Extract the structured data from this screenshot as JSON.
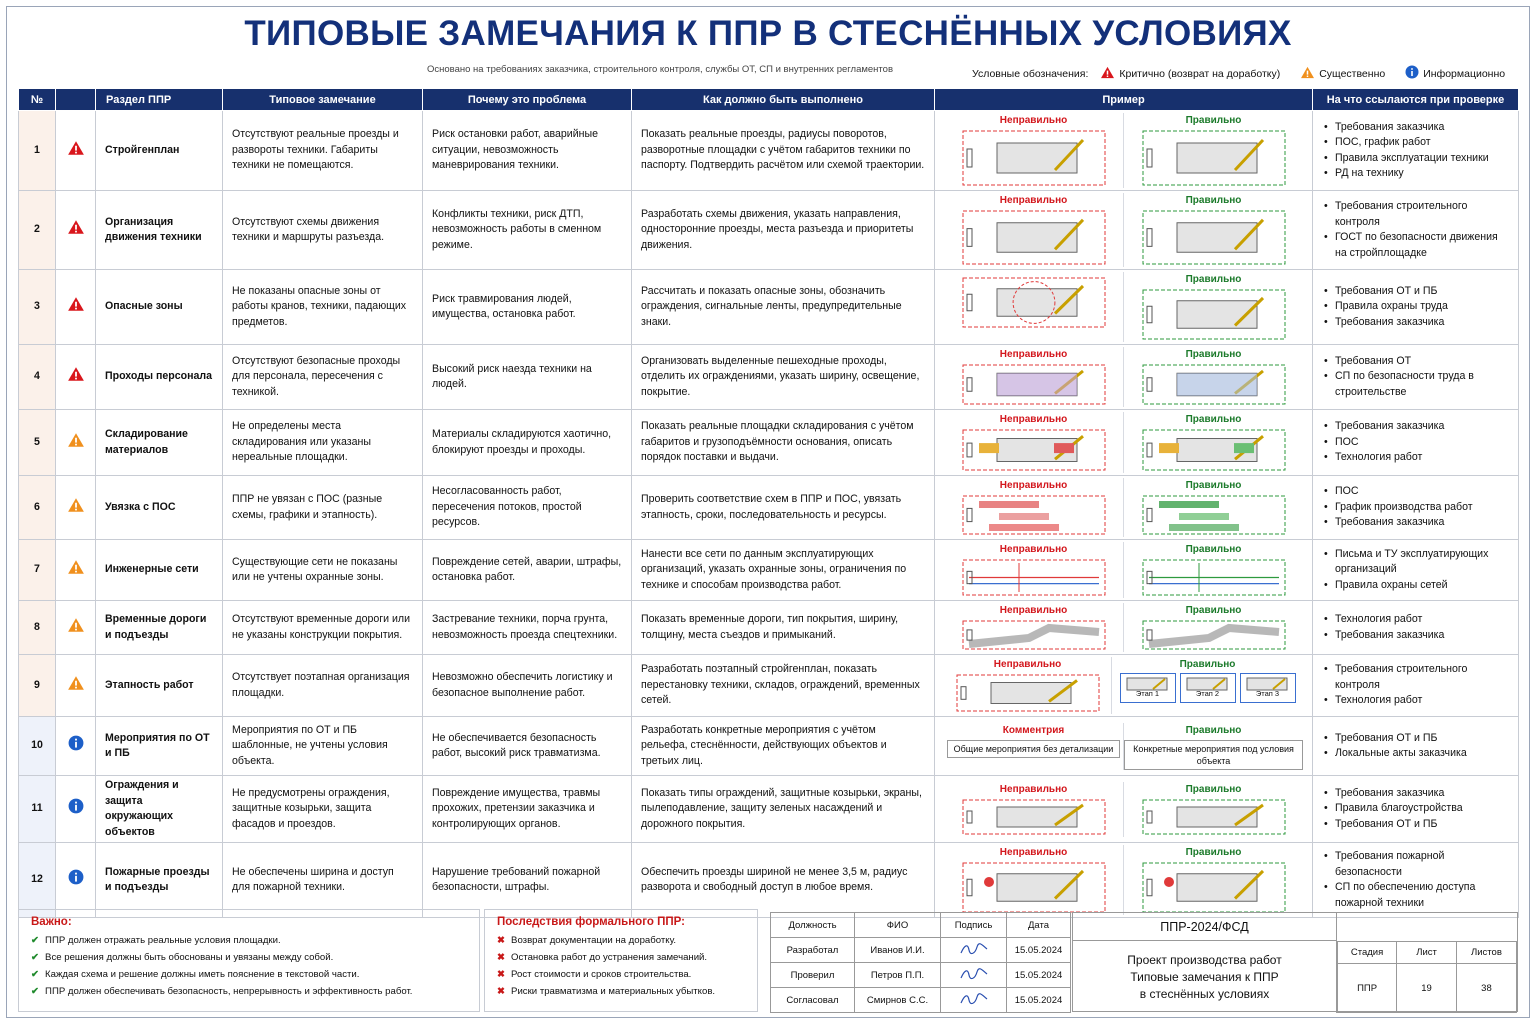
{
  "title": "ТИПОВЫЕ ЗАМЕЧАНИЯ К ППР В СТЕСНЁННЫХ УСЛОВИЯХ",
  "subtitle": "Основано на требованиях заказчика, строительного контроля, службы ОТ, СП и внутренних регламентов",
  "legend": {
    "label": "Условные обозначения:",
    "critical": "Критично (возврат на доработку)",
    "significant": "Существенно",
    "info": "Информационно"
  },
  "colors": {
    "critical": "#d9161c",
    "significant": "#f0901e",
    "info": "#1d5fc8",
    "header": "#17306d",
    "title": "#13307a"
  },
  "headers": [
    "№",
    "",
    "Раздел ППР",
    "Типовое замечание",
    "Почему это проблема",
    "Как должно быть выполнено",
    "Пример",
    "На что ссылаются при проверке"
  ],
  "rows": [
    {
      "n": "1",
      "level": "critical",
      "icon": "warning-red-icon",
      "section": "Стройгенплан",
      "remark": "Отсутствуют реальные проезды и развороты техники. Габариты техники не помещаются.",
      "why": "Риск остановки работ, аварийные ситуации, невозможность маневрирования техники.",
      "how": "Показать реальные проезды, радиусы поворотов, разворотные площадки с учётом габаритов техники по паспорту. Подтвердить расчётом или схемой траектории.",
      "ex_bad": "Неправильно",
      "ex_good": "Правильно",
      "refs": [
        "Требования заказчика",
        "ПОС, график работ",
        "Правила эксплуатации техники",
        "РД на технику"
      ]
    },
    {
      "n": "2",
      "level": "critical",
      "icon": "warning-red-icon",
      "section": "Организация движения техники",
      "remark": "Отсутствуют схемы движения техники и маршруты разъезда.",
      "why": "Конфликты техники, риск ДТП, невозможность работы в сменном режиме.",
      "how": "Разработать схемы движения, указать направления, односторонние проезды, места разъезда и приоритеты движения.",
      "ex_bad": "Неправильно",
      "ex_good": "Правильно",
      "refs": [
        "Требования строительного контроля",
        "ГОСТ по безопасности движения на стройплощадке"
      ]
    },
    {
      "n": "3",
      "level": "critical",
      "icon": "warning-red-icon",
      "section": "Опасные зоны",
      "remark": "Не показаны опасные зоны от работы кранов, техники, падающих предметов.",
      "why": "Риск травмирования людей, имущества, остановка работ.",
      "how": "Рассчитать и показать опасные зоны, обозначить ограждения, сигнальные ленты, предупредительные знаки.",
      "ex_bad": "",
      "ex_good": "Правильно",
      "refs": [
        "Требования ОТ и ПБ",
        "Правила охраны труда",
        "Требования заказчика"
      ]
    },
    {
      "n": "4",
      "level": "critical",
      "icon": "warning-red-icon",
      "section": "Проходы персонала",
      "remark": "Отсутствуют безопасные проходы для персонала, пересечения с техникой.",
      "why": "Высокий риск наезда техники на людей.",
      "how": "Организовать выделенные пешеходные проходы, отделить их ограждениями, указать ширину, освещение, покрытие.",
      "ex_bad": "Неправильно",
      "ex_good": "Правильно",
      "refs": [
        "Требования ОТ",
        "СП по безопасности труда в строительстве"
      ]
    },
    {
      "n": "5",
      "level": "significant",
      "icon": "warning-orange-icon",
      "section": "Складирование материалов",
      "remark": "Не определены места складирования или указаны нереальные площадки.",
      "why": "Материалы складируются хаотично, блокируют проезды и проходы.",
      "how": "Показать реальные площадки складирования с учётом габаритов и грузоподъёмности основания, описать порядок поставки и выдачи.",
      "ex_bad": "Неправильно",
      "ex_good": "Правильно",
      "refs": [
        "Требования заказчика",
        "ПОС",
        "Технология работ"
      ]
    },
    {
      "n": "6",
      "level": "significant",
      "icon": "warning-orange-icon",
      "section": "Увязка с ПОС",
      "remark": "ППР не увязан с ПОС (разные схемы, графики и этапность).",
      "why": "Несогласованность работ, пересечения потоков, простой ресурсов.",
      "how": "Проверить соответствие схем в ППР и ПОС, увязать этапность, сроки, последовательность и ресурсы.",
      "ex_bad": "Неправильно",
      "ex_good": "Правильно",
      "refs": [
        "ПОС",
        "График производства работ",
        "Требования заказчика"
      ]
    },
    {
      "n": "7",
      "level": "significant",
      "icon": "warning-orange-icon",
      "section": "Инженерные сети",
      "remark": "Существующие сети не показаны или не учтены охранные зоны.",
      "why": "Повреждение сетей, аварии, штрафы, остановка работ.",
      "how": "Нанести все сети по данным эксплуатирующих организаций, указать охранные зоны, ограничения по технике и способам производства работ.",
      "ex_bad": "Неправильно",
      "ex_good": "Правильно",
      "refs": [
        "Письма и ТУ эксплуатирующих организаций",
        "Правила охраны сетей"
      ]
    },
    {
      "n": "8",
      "level": "significant",
      "icon": "warning-orange-icon",
      "section": "Временные дороги и подъезды",
      "remark": "Отсутствуют временные дороги или не указаны конструкции покрытия.",
      "why": "Застревание техники, порча грунта, невозможность проезда спецтехники.",
      "how": "Показать временные дороги, тип покрытия, ширину, толщину, места съездов и примыканий.",
      "ex_bad": "Неправильно",
      "ex_good": "Правильно",
      "refs": [
        "Технология работ",
        "Требования заказчика"
      ]
    },
    {
      "n": "9",
      "level": "significant",
      "icon": "warning-orange-icon",
      "section": "Этапность работ",
      "remark": "Отсутствует поэтапная организация площадки.",
      "why": "Невозможно обеспечить логистику и безопасное выполнение работ.",
      "how": "Разработать поэтапный стройгенплан, показать перестановку техники, складов, ограждений, временных сетей.",
      "ex_bad": "Неправильно",
      "ex_good": "Правильно",
      "stages": [
        "Этап 1",
        "Этап 2",
        "Этап 3"
      ],
      "refs": [
        "Требования строительного контроля",
        "Технология работ"
      ]
    },
    {
      "n": "10",
      "level": "info",
      "icon": "info-blue-icon",
      "section": "Мероприятия по ОТ и ПБ",
      "remark": "Мероприятия по ОТ и ПБ шаблонные, не учтены условия объекта.",
      "why": "Не обеспечивается безопасность работ, высокий риск травматизма.",
      "how": "Разработать конкретные мероприятия с учётом рельефа, стеснённости, действующих объектов и третьих лиц.",
      "ex_bad": "Комментрия",
      "ex_good": "Правильно",
      "note_bad": "Общие мероприятия без детализации",
      "note_good": "Конкретные мероприятия под условия объекта",
      "refs": [
        "Требования ОТ и ПБ",
        "Локальные акты заказчика"
      ]
    },
    {
      "n": "11",
      "level": "info",
      "icon": "info-blue-icon",
      "section": "Ограждения и защита окружающих объектов",
      "remark": "Не предусмотрены ограждения, защитные козырьки, защита фасадов и проездов.",
      "why": "Повреждение имущества, травмы прохожих, претензии заказчика и контролирующих органов.",
      "how": "Показать типы ограждений, защитные козырьки, экраны, пылеподавление, защиту зеленых насаждений и дорожного покрытия.",
      "ex_bad": "Неправильно",
      "ex_good": "Правильно",
      "refs": [
        "Требования заказчика",
        "Правила благоустройства",
        "Требования ОТ и ПБ"
      ]
    },
    {
      "n": "12",
      "level": "info",
      "icon": "info-blue-icon",
      "section": "Пожарные проезды и подъезды",
      "remark": "Не обеспечены ширина и доступ для пожарной техники.",
      "why": "Нарушение требований пожарной безопасности, штрафы.",
      "how": "Обеспечить проезды шириной не менее 3,5 м, радиус разворота и свободный доступ в любое время.",
      "ex_bad": "Неправильно",
      "ex_good": "Правильно",
      "refs": [
        "Требования пожарной безопасности",
        "СП по обеспечению доступа пожарной техники"
      ]
    }
  ],
  "important": {
    "title": "Важно:",
    "items": [
      "ППР должен отражать реальные условия площадки.",
      "Все решения должны быть обоснованы и увязаны между собой.",
      "Каждая схема и решение должны иметь пояснение в текстовой части.",
      "ППР должен обеспечивать безопасность, непрерывность и эффективность работ."
    ]
  },
  "consequences": {
    "title_a": "Последствия формального ",
    "title_b": "ППР:",
    "items": [
      "Возврат документации на доработку.",
      "Остановка работ до устранения замечаний.",
      "Рост стоимости и сроков строительства.",
      "Риски травматизма и материальных убытков."
    ]
  },
  "signatures": {
    "headers": [
      "Должность",
      "ФИО",
      "Подпись",
      "Дата"
    ],
    "rows": [
      {
        "role": "Разработал",
        "name": "Иванов И.И.",
        "date": "15.05.2024"
      },
      {
        "role": "Проверил",
        "name": "Петров П.П.",
        "date": "15.05.2024"
      },
      {
        "role": "Согласовал",
        "name": "Смирнов С.С.",
        "date": "15.05.2024"
      }
    ]
  },
  "stamp": {
    "code": "ППР-2024/ФСД",
    "name_lines": [
      "Проект производства работ",
      "Типовые замечания к ППР",
      "в стеснённых условиях"
    ],
    "headers": [
      "Стадия",
      "Лист",
      "Листов"
    ],
    "values": [
      "ППР",
      "19",
      "38"
    ]
  }
}
